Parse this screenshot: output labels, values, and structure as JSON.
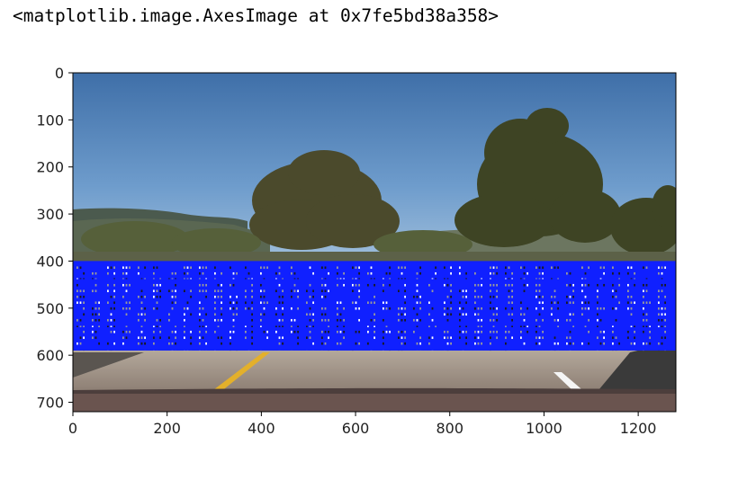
{
  "output_repr": "<matplotlib.image.AxesImage at 0x7fe5bd38a358>",
  "chart_data": {
    "type": "image",
    "title": "",
    "xlabel": "",
    "ylabel": "",
    "image": {
      "width_units": 1280,
      "height_units": 720,
      "origin": "upper",
      "content": "dashcam road scene with trees, hills and sky; lane lines on asphalt"
    },
    "xlim": [
      0,
      1280
    ],
    "ylim": [
      720,
      0
    ],
    "x_ticks": [
      0,
      200,
      400,
      600,
      800,
      1000,
      1200
    ],
    "y_ticks": [
      0,
      100,
      200,
      300,
      400,
      500,
      600,
      700
    ],
    "overlay": {
      "kind": "search-window-grid",
      "color": "#1020ff",
      "x_range": [
        0,
        1280
      ],
      "y_range": [
        400,
        590
      ]
    },
    "grid": false
  }
}
